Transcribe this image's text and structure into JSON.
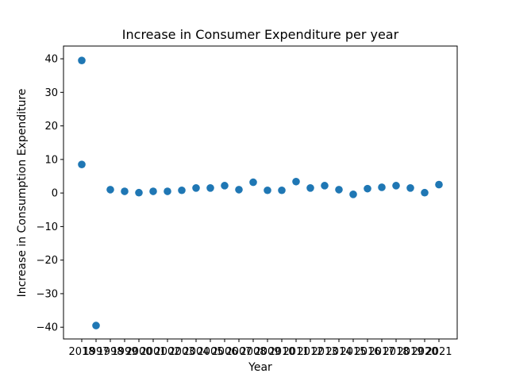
{
  "chart_data": {
    "type": "scatter",
    "title": "Increase in Consumer Expenditure per year",
    "xlabel": "Year",
    "ylabel": "Increase in Consumption Expenditure",
    "x_tick_labels": [
      "2018",
      "1997",
      "1998",
      "1999",
      "2000",
      "2001",
      "2002",
      "2003",
      "2004",
      "2005",
      "2006",
      "2007",
      "2008",
      "2009",
      "2010",
      "2011",
      "2012",
      "2013",
      "2014",
      "2015",
      "2016",
      "2017",
      "2018",
      "2019",
      "2020",
      "2021"
    ],
    "y_ticks": [
      -40,
      -30,
      -20,
      -10,
      0,
      10,
      20,
      30,
      40
    ],
    "y_tick_labels": [
      "−40",
      "−30",
      "−20",
      "−10",
      "0",
      "10",
      "20",
      "30",
      "40"
    ],
    "ylim": [
      -43.5,
      43.8
    ],
    "grid": false,
    "points": [
      {
        "x_index": 0,
        "y": 39.5
      },
      {
        "x_index": 0,
        "y": 8.5
      },
      {
        "x_index": 1,
        "y": -39.5
      },
      {
        "x_index": 2,
        "y": 1.0
      },
      {
        "x_index": 3,
        "y": 0.5
      },
      {
        "x_index": 4,
        "y": 0.1
      },
      {
        "x_index": 5,
        "y": 0.5
      },
      {
        "x_index": 6,
        "y": 0.5
      },
      {
        "x_index": 7,
        "y": 0.8
      },
      {
        "x_index": 8,
        "y": 1.5
      },
      {
        "x_index": 9,
        "y": 1.5
      },
      {
        "x_index": 10,
        "y": 2.2
      },
      {
        "x_index": 11,
        "y": 1.0
      },
      {
        "x_index": 12,
        "y": 3.2
      },
      {
        "x_index": 13,
        "y": 0.8
      },
      {
        "x_index": 14,
        "y": 0.8
      },
      {
        "x_index": 15,
        "y": 3.4
      },
      {
        "x_index": 16,
        "y": 1.5
      },
      {
        "x_index": 17,
        "y": 2.2
      },
      {
        "x_index": 18,
        "y": 1.0
      },
      {
        "x_index": 19,
        "y": -0.4
      },
      {
        "x_index": 20,
        "y": 1.3
      },
      {
        "x_index": 21,
        "y": 1.7
      },
      {
        "x_index": 22,
        "y": 2.2
      },
      {
        "x_index": 23,
        "y": 1.5
      },
      {
        "x_index": 24,
        "y": 0.1
      },
      {
        "x_index": 25,
        "y": 2.5
      }
    ],
    "marker_color": "#1f77b4"
  }
}
